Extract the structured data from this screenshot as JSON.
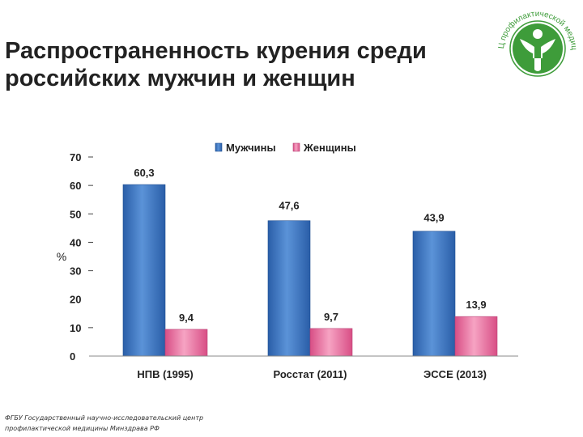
{
  "slide": {
    "title_line1": "Распространенность курения среди",
    "title_line2": "российских мужчин и женщин",
    "footer_line1": "ФГБУ Государственный научно-исследовательский центр",
    "footer_line2": "профилактической медицины Минздрава РФ"
  },
  "logo": {
    "text": "ГНИЦ профилактической медицины",
    "color": "#3e9c3a"
  },
  "chart_data": {
    "type": "bar",
    "categories": [
      "НПВ (1995)",
      "Росстат (2011)",
      "ЭССЕ (2013)"
    ],
    "series": [
      {
        "name": "Мужчины",
        "values": [
          60.3,
          47.6,
          43.9
        ],
        "labels": [
          "60,3",
          "47,6",
          "43,9"
        ],
        "color": "#3a74c1"
      },
      {
        "name": "Женщины",
        "values": [
          9.4,
          9.7,
          13.9
        ],
        "labels": [
          "9,4",
          "9,7",
          "13,9"
        ],
        "color": "#ec6f9d"
      }
    ],
    "ylabel": "%",
    "ylim": [
      0,
      70
    ],
    "yticks": [
      "0",
      "10",
      "20",
      "30",
      "40",
      "50",
      "60",
      "70"
    ],
    "legend_position": "top",
    "grid": false
  }
}
